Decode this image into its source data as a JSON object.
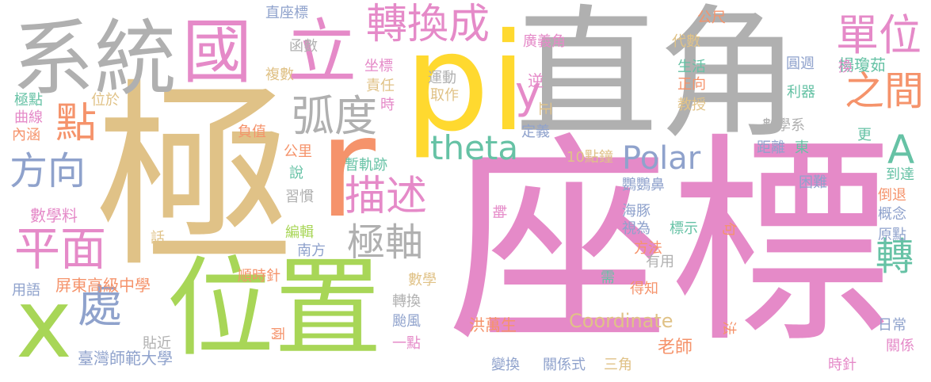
{
  "colors": {
    "gray": "#b0b0b0",
    "pink": "#e58ac8",
    "tan": "#e0c287",
    "green": "#a8d657",
    "orange": "#f5936b",
    "blue": "#8fa2cc",
    "yellow": "#ffd92f",
    "teal": "#66c2a5"
  },
  "words": [
    {
      "text": "座標",
      "color": "pink",
      "vertical": false
    },
    {
      "text": "極",
      "color": "tan",
      "vertical": false
    },
    {
      "text": "直角",
      "color": "gray",
      "vertical": false
    },
    {
      "text": "pi",
      "color": "yellow",
      "vertical": false
    },
    {
      "text": "位置",
      "color": "green",
      "vertical": false
    },
    {
      "text": "系統",
      "color": "gray",
      "vertical": false
    },
    {
      "text": "r",
      "color": "orange",
      "vertical": false
    },
    {
      "text": "國",
      "color": "pink",
      "vertical": false
    },
    {
      "text": "立",
      "color": "pink",
      "vertical": false
    },
    {
      "text": "x",
      "color": "green",
      "vertical": false
    },
    {
      "text": "轉換成",
      "color": "pink",
      "vertical": false
    },
    {
      "text": "單位",
      "color": "pink",
      "vertical": false
    },
    {
      "text": "之間",
      "color": "orange",
      "vertical": false
    },
    {
      "text": "弧度",
      "color": "gray",
      "vertical": false
    },
    {
      "text": "theta",
      "color": "teal",
      "vertical": false
    },
    {
      "text": "描述",
      "color": "pink",
      "vertical": false
    },
    {
      "text": "平面",
      "color": "pink",
      "vertical": false
    },
    {
      "text": "方向",
      "color": "blue",
      "vertical": false
    },
    {
      "text": "點",
      "color": "orange",
      "vertical": false
    },
    {
      "text": "處",
      "color": "blue",
      "vertical": false
    },
    {
      "text": "極軸",
      "color": "gray",
      "vertical": false
    },
    {
      "text": "A",
      "color": "teal",
      "vertical": false
    },
    {
      "text": "轉",
      "color": "teal",
      "vertical": false
    },
    {
      "text": "y",
      "color": "pink",
      "vertical": false
    },
    {
      "text": "Polar",
      "color": "blue",
      "vertical": false
    },
    {
      "text": "Coordinate",
      "color": "tan",
      "vertical": false
    },
    {
      "text": "屏東高級中學",
      "color": "orange",
      "vertical": false
    },
    {
      "text": "臺灣師範大學",
      "color": "blue",
      "vertical": false
    },
    {
      "text": "數學料",
      "color": "pink",
      "vertical": false
    },
    {
      "text": "順時針",
      "color": "orange",
      "vertical": false
    },
    {
      "text": "洪萬生",
      "color": "orange",
      "vertical": false
    },
    {
      "text": "數學系",
      "color": "gray",
      "vertical": false
    },
    {
      "text": "老師",
      "color": "orange",
      "vertical": false
    },
    {
      "text": "關係式",
      "color": "blue",
      "vertical": false
    },
    {
      "text": "變換",
      "color": "blue",
      "vertical": false
    },
    {
      "text": "三角",
      "color": "tan",
      "vertical": false
    },
    {
      "text": "直座標",
      "color": "blue",
      "vertical": false
    },
    {
      "text": "廣義角",
      "color": "pink",
      "vertical": false
    },
    {
      "text": "楊瓊茹",
      "color": "teal",
      "vertical": false
    },
    {
      "text": "圓週",
      "color": "blue",
      "vertical": false
    },
    {
      "text": "日常",
      "color": "blue",
      "vertical": false
    },
    {
      "text": "關係",
      "color": "pink",
      "vertical": false
    },
    {
      "text": "時針",
      "color": "pink",
      "vertical": false
    },
    {
      "text": "鸚鸚鼻",
      "color": "blue",
      "vertical": false
    },
    {
      "text": "海豚",
      "color": "blue",
      "vertical": false
    },
    {
      "text": "視為",
      "color": "blue",
      "vertical": false
    },
    {
      "text": "方法",
      "color": "orange",
      "vertical": false
    },
    {
      "text": "標示",
      "color": "teal",
      "vertical": false
    },
    {
      "text": "有用",
      "color": "gray",
      "vertical": false
    },
    {
      "text": "得知",
      "color": "orange",
      "vertical": false
    },
    {
      "text": "10點鐘",
      "color": "tan",
      "vertical": false
    },
    {
      "text": "距離",
      "color": "blue",
      "vertical": false
    },
    {
      "text": "東",
      "color": "teal",
      "vertical": false
    },
    {
      "text": "困難",
      "color": "blue",
      "vertical": false
    },
    {
      "text": "到達",
      "color": "teal",
      "vertical": false
    },
    {
      "text": "倒退",
      "color": "orange",
      "vertical": false
    },
    {
      "text": "概念",
      "color": "blue",
      "vertical": false
    },
    {
      "text": "原點",
      "color": "blue",
      "vertical": false
    },
    {
      "text": "更",
      "color": "teal",
      "vertical": false
    },
    {
      "text": "生活",
      "color": "teal",
      "vertical": false
    },
    {
      "text": "正向",
      "color": "orange",
      "vertical": false
    },
    {
      "text": "教授",
      "color": "tan",
      "vertical": false
    },
    {
      "text": "利器",
      "color": "teal",
      "vertical": false
    },
    {
      "text": "換",
      "color": "pink",
      "vertical": false
    },
    {
      "text": "代數",
      "color": "tan",
      "vertical": false
    },
    {
      "text": "公尺",
      "color": "orange",
      "vertical": false
    },
    {
      "text": "逆",
      "color": "pink",
      "vertical": false
    },
    {
      "text": "運動",
      "color": "gray",
      "vertical": false
    },
    {
      "text": "取作",
      "color": "tan",
      "vertical": false
    },
    {
      "text": "坐標",
      "color": "pink",
      "vertical": false
    },
    {
      "text": "責任",
      "color": "tan",
      "vertical": false
    },
    {
      "text": "時",
      "color": "pink",
      "vertical": false
    },
    {
      "text": "定義",
      "color": "blue",
      "vertical": false
    },
    {
      "text": "函數",
      "color": "gray",
      "vertical": false
    },
    {
      "text": "複數",
      "color": "tan",
      "vertical": false
    },
    {
      "text": "位於",
      "color": "tan",
      "vertical": false
    },
    {
      "text": "極點",
      "color": "teal",
      "vertical": false
    },
    {
      "text": "曲線",
      "color": "pink",
      "vertical": false
    },
    {
      "text": "內涵",
      "color": "orange",
      "vertical": false
    },
    {
      "text": "負值",
      "color": "orange",
      "vertical": false
    },
    {
      "text": "公里",
      "color": "orange",
      "vertical": false
    },
    {
      "text": "說",
      "color": "teal",
      "vertical": false
    },
    {
      "text": "暫軌跡",
      "color": "teal",
      "vertical": false
    },
    {
      "text": "習慣",
      "color": "gray",
      "vertical": false
    },
    {
      "text": "編輯",
      "color": "green",
      "vertical": false
    },
    {
      "text": "南方",
      "color": "blue",
      "vertical": false
    },
    {
      "text": "話",
      "color": "tan",
      "vertical": false
    },
    {
      "text": "數學",
      "color": "tan",
      "vertical": false
    },
    {
      "text": "轉換",
      "color": "gray",
      "vertical": false
    },
    {
      "text": "颱風",
      "color": "blue",
      "vertical": false
    },
    {
      "text": "一點",
      "color": "pink",
      "vertical": false
    },
    {
      "text": "用語",
      "color": "blue",
      "vertical": false
    },
    {
      "text": "貼近",
      "color": "gray",
      "vertical": false
    },
    {
      "text": "需",
      "color": "teal",
      "vertical": false
    },
    {
      "text": "正",
      "color": "tan",
      "vertical": true
    },
    {
      "text": "軸",
      "color": "pink",
      "vertical": true
    },
    {
      "text": "兩",
      "color": "orange",
      "vertical": true
    },
    {
      "text": "句",
      "color": "orange",
      "vertical": true
    },
    {
      "text": "法",
      "color": "orange",
      "vertical": true
    }
  ]
}
